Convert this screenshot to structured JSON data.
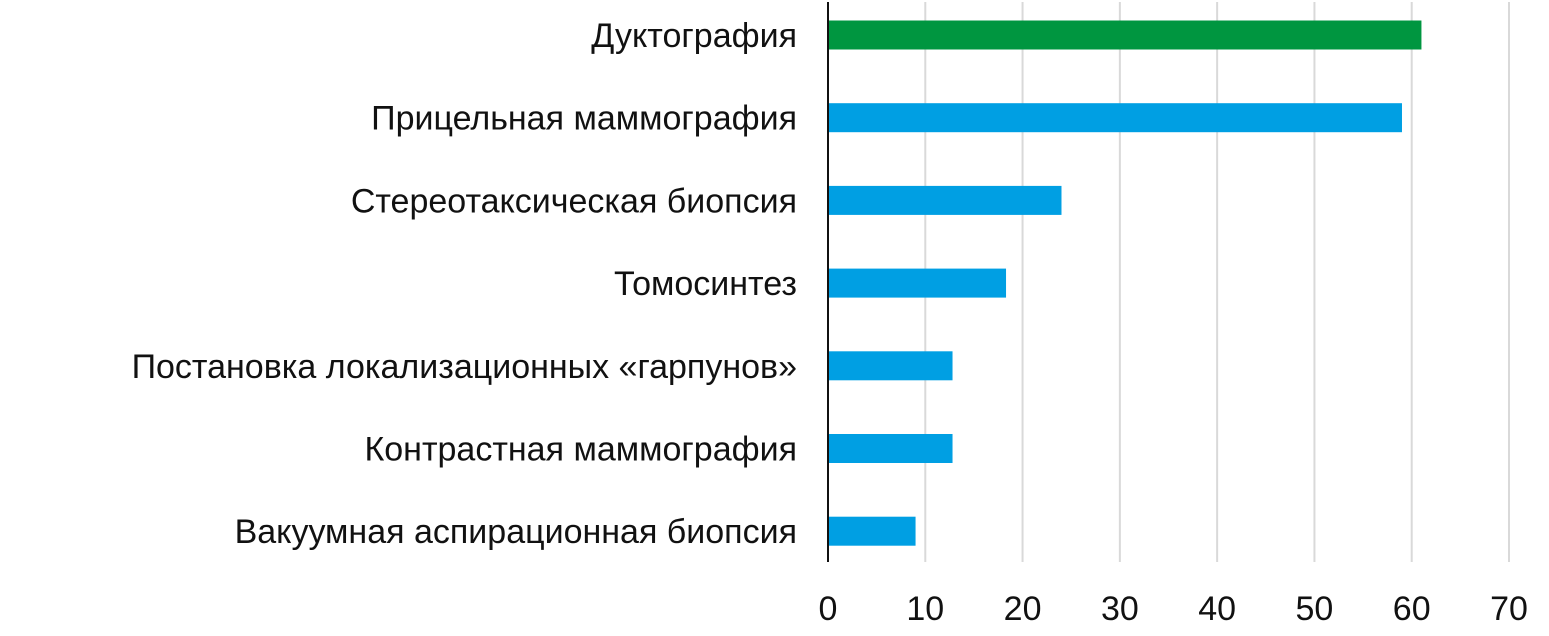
{
  "chart_data": {
    "type": "bar",
    "orientation": "horizontal",
    "title": "",
    "xlabel": "",
    "ylabel": "",
    "categories": [
      "Дуктография",
      "Прицельная маммография",
      "Стереотаксическая биопсия",
      "Томосинтез",
      "Постановка локализационных «гарпунов»",
      "Контрастная маммография",
      "Вакуумная аспирационная биопсия"
    ],
    "values": [
      61,
      59,
      24,
      18.3,
      12.8,
      12.8,
      9
    ],
    "xlim": [
      0,
      70
    ],
    "xticks": [
      0,
      10,
      20,
      30,
      40,
      50,
      60,
      70
    ],
    "grid": "vertical",
    "legend": "none",
    "highlight_index": 0,
    "colors": {
      "highlight": "#009640",
      "default": "#009FE3",
      "grid": "#d9d9d9",
      "axis": "#111111",
      "text": "#111111"
    }
  }
}
